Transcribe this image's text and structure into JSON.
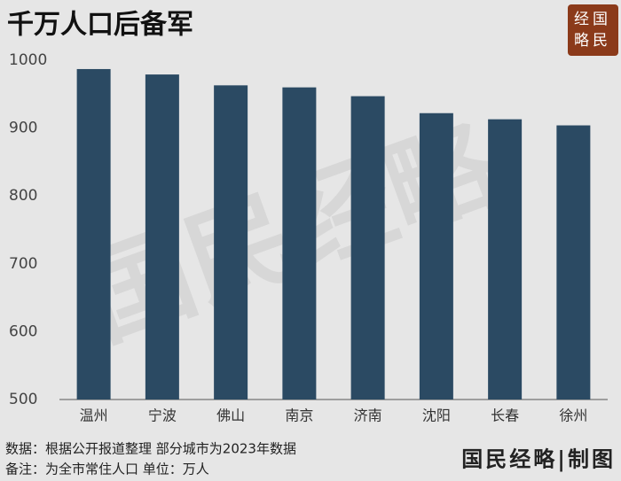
{
  "chart_data": {
    "type": "bar",
    "title": "千万人口后备军",
    "categories": [
      "温州",
      "宁波",
      "佛山",
      "南京",
      "济南",
      "沈阳",
      "长春",
      "徐州"
    ],
    "values": [
      987,
      979,
      963,
      960,
      947,
      922,
      913,
      904
    ],
    "color": "#2b4a63",
    "ylim": [
      500,
      1000
    ],
    "yticks": [
      500,
      600,
      700,
      800,
      900,
      1000
    ],
    "grid": false,
    "notes": [
      "数据：根据公开报道整理 部分城市为2023年数据",
      "备注：为全市常住人口 单位：万人"
    ],
    "logo": [
      "经国",
      "略民"
    ],
    "credit": "国民经略|制图",
    "watermark": "国民经略"
  }
}
